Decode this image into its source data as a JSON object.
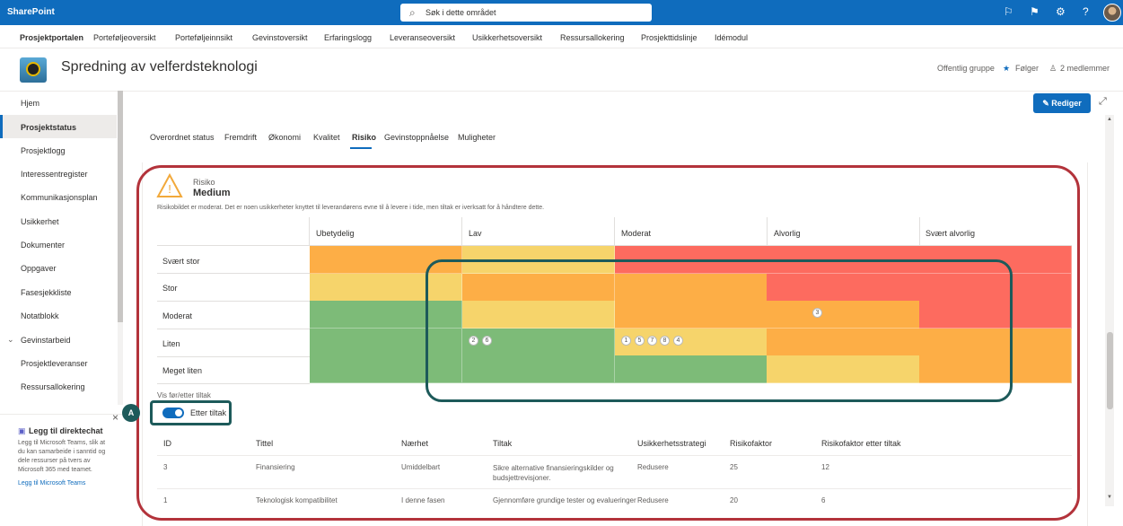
{
  "topbar": {
    "brand": "SharePoint",
    "search_placeholder": "Søk i dette området"
  },
  "hubnav": [
    "Prosjektportalen",
    "Porteføljeoversikt",
    "Porteføljeinnsikt",
    "Gevinstoversikt",
    "Erfaringslogg",
    "Leveranseoversikt",
    "Usikkerhetsoversikt",
    "Ressursallokering",
    "Prosjekttidslinje",
    "Idémodul"
  ],
  "site": {
    "title": "Spredning av velferdsteknologi",
    "group_type": "Offentlig gruppe",
    "follow_label": "Følger",
    "members": "2 medlemmer",
    "edit_label": "Rediger"
  },
  "sidebar": [
    "Hjem",
    "Prosjektstatus",
    "Prosjektlogg",
    "Interessentregister",
    "Kommunikasjonsplan",
    "Usikkerhet",
    "Dokumenter",
    "Oppgaver",
    "Fasesjekkliste",
    "Notatblokk",
    "Gevinstarbeid",
    "Prosjektleveranser",
    "Ressursallokering"
  ],
  "teams": {
    "title": "Legg til direktechat",
    "body": "Legg til Microsoft Teams, slik at du kan samarbeide i sanntid og dele ressurser på tvers av Microsoft 365 med teamet.",
    "link": "Legg til Microsoft Teams"
  },
  "tabs": [
    "Overordnet status",
    "Fremdrift",
    "Økonomi",
    "Kvalitet",
    "Risiko",
    "Gevinstoppnåelse",
    "Muligheter"
  ],
  "risk": {
    "label": "Risiko",
    "level": "Medium",
    "description": "Risikobildet er moderat. Det er noen usikkerheter knyttet til leverandørens evne til å levere i tide, men tiltak er iverksatt for å håndtere dette.",
    "consequence_headers": [
      "Ubetydelig",
      "Lav",
      "Moderat",
      "Alvorlig",
      "Svært alvorlig"
    ],
    "probability_rows": [
      "Svært stor",
      "Stor",
      "Moderat",
      "Liten",
      "Meget liten"
    ],
    "badges": {
      "moderat_alvorlig": [
        "3"
      ],
      "liten_lav": [
        "2",
        "6"
      ],
      "liten_moderat": [
        "1",
        "5",
        "7",
        "8",
        "4"
      ]
    },
    "toggle_caption": "Vis før/etter tiltak",
    "toggle_label": "Etter tiltak",
    "callout": "A"
  },
  "colors": {
    "green": "#7dbb78",
    "yellow": "#f6d46b",
    "orange": "#fdae46",
    "red": "#fd6b5f",
    "brand": "#0f6cbd",
    "annotation_red": "#b3333b",
    "annotation_teal": "#1d5a5a"
  },
  "table": {
    "headers": [
      "ID",
      "Tittel",
      "Nærhet",
      "Tiltak",
      "Usikkerhetsstrategi",
      "Risikofaktor",
      "Risikofaktor etter tiltak"
    ],
    "rows": [
      [
        "3",
        "Finansiering",
        "Umiddelbart",
        "Sikre alternative finansieringskilder og budsjettrevisjoner.",
        "Redusere",
        "25",
        "12"
      ],
      [
        "1",
        "Teknologisk kompatibilitet",
        "I denne fasen",
        "Gjennomføre grundige tester og evalueringer",
        "Redusere",
        "20",
        "6"
      ]
    ]
  }
}
